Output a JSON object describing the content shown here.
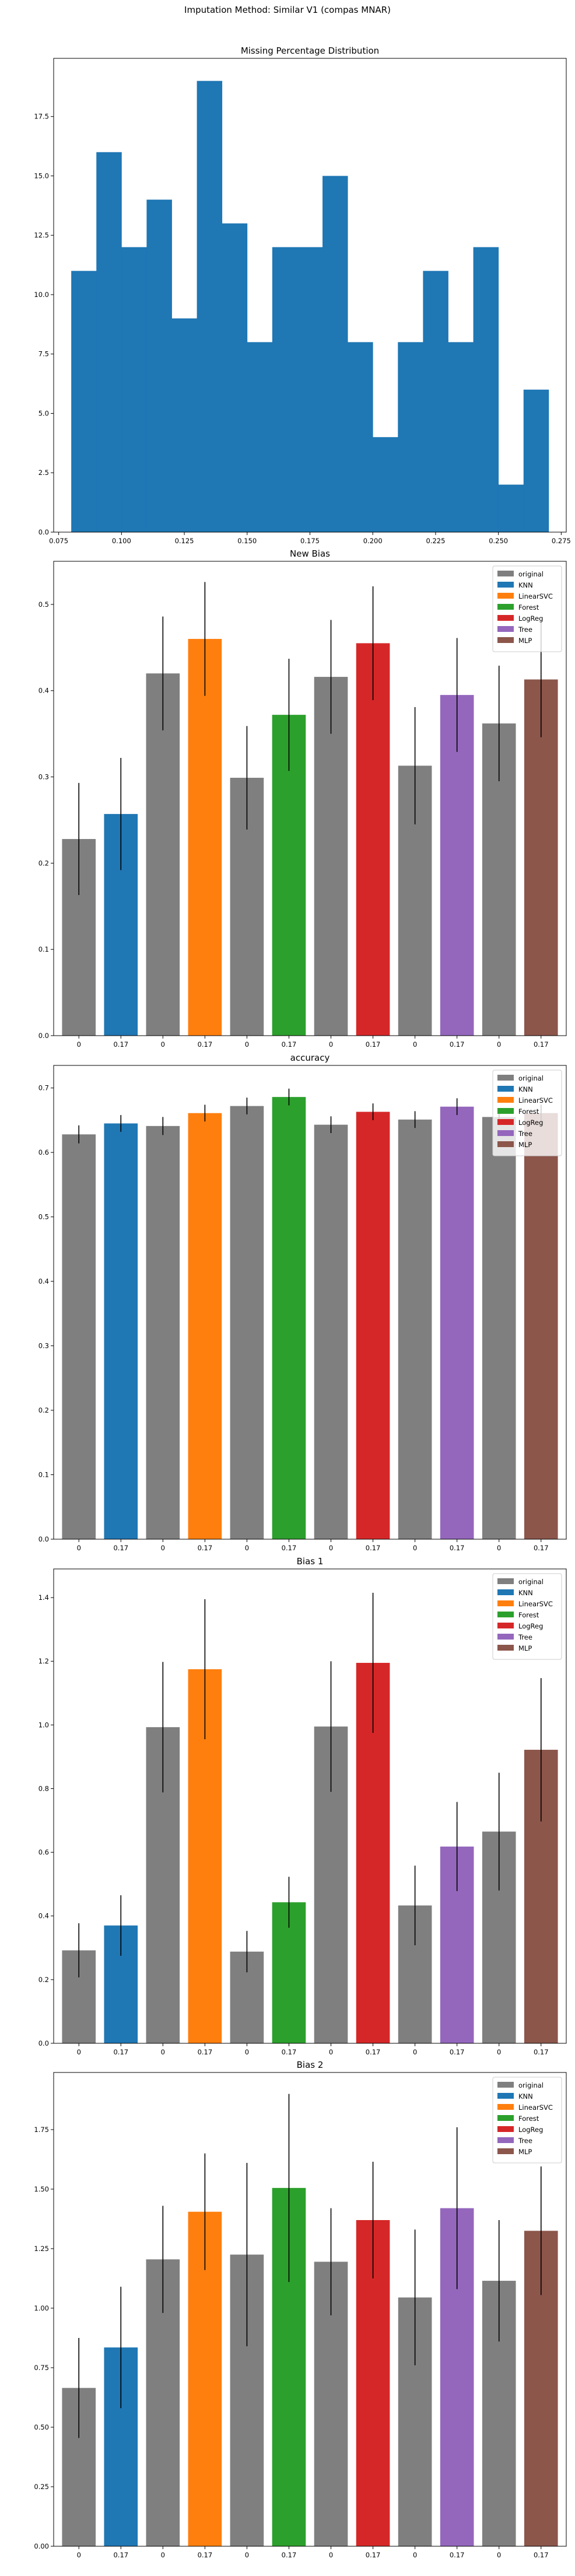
{
  "suptitle": "Imputation Method: Similar V1 (compas MNAR)",
  "colors": {
    "original": "#7f7f7f",
    "KNN": "#1f77b4",
    "LinearSVC": "#ff7f0e",
    "Forest": "#2ca02c",
    "LogReg": "#d62728",
    "Tree": "#9467bd",
    "MLP": "#8c564b",
    "hist": "#1f77b4"
  },
  "legend": [
    "original",
    "KNN",
    "LinearSVC",
    "Forest",
    "LogReg",
    "Tree",
    "MLP"
  ],
  "chart_data": [
    {
      "type": "histogram",
      "title": "Missing Percentage Distribution",
      "bins_start": 0.08,
      "bin_width": 0.01,
      "counts": [
        11,
        16,
        12,
        14,
        9,
        19,
        13,
        8,
        12,
        12,
        15,
        8,
        4,
        8,
        11,
        8,
        12,
        2,
        6
      ],
      "xlim": [
        0.073,
        0.277
      ],
      "ylim": [
        0,
        19.95
      ],
      "xticks": [
        "0.075",
        "0.100",
        "0.125",
        "0.150",
        "0.175",
        "0.200",
        "0.225",
        "0.250",
        "0.275"
      ],
      "yticks": [
        "0.0",
        "2.5",
        "5.0",
        "7.5",
        "10.0",
        "12.5",
        "15.0",
        "17.5"
      ]
    },
    {
      "type": "bar",
      "title": "New Bias",
      "group_labels": [
        "0",
        "0.17"
      ],
      "ylim": [
        0,
        0.55
      ],
      "yticks": [
        "0.0",
        "0.1",
        "0.2",
        "0.3",
        "0.4",
        "0.5"
      ],
      "legend_position": "top-right",
      "series": [
        {
          "name": "KNN",
          "original": 0.228,
          "original_err": 0.065,
          "imputed": 0.257,
          "imputed_err": 0.065
        },
        {
          "name": "LinearSVC",
          "original": 0.42,
          "original_err": 0.066,
          "imputed": 0.46,
          "imputed_err": 0.066
        },
        {
          "name": "Forest",
          "original": 0.299,
          "original_err": 0.06,
          "imputed": 0.372,
          "imputed_err": 0.065
        },
        {
          "name": "LogReg",
          "original": 0.416,
          "original_err": 0.066,
          "imputed": 0.455,
          "imputed_err": 0.066
        },
        {
          "name": "Tree",
          "original": 0.313,
          "original_err": 0.068,
          "imputed": 0.395,
          "imputed_err": 0.066
        },
        {
          "name": "MLP",
          "original": 0.362,
          "original_err": 0.067,
          "imputed": 0.413,
          "imputed_err": 0.067
        }
      ]
    },
    {
      "type": "bar",
      "title": "accuracy",
      "group_labels": [
        "0",
        "0.17"
      ],
      "ylim": [
        0,
        0.735
      ],
      "yticks": [
        "0.0",
        "0.1",
        "0.2",
        "0.3",
        "0.4",
        "0.5",
        "0.6",
        "0.7"
      ],
      "legend_position": "top-right",
      "series": [
        {
          "name": "KNN",
          "original": 0.628,
          "original_err": 0.014,
          "imputed": 0.645,
          "imputed_err": 0.013
        },
        {
          "name": "LinearSVC",
          "original": 0.641,
          "original_err": 0.014,
          "imputed": 0.661,
          "imputed_err": 0.013
        },
        {
          "name": "Forest",
          "original": 0.672,
          "original_err": 0.013,
          "imputed": 0.686,
          "imputed_err": 0.013
        },
        {
          "name": "LogReg",
          "original": 0.643,
          "original_err": 0.013,
          "imputed": 0.663,
          "imputed_err": 0.013
        },
        {
          "name": "Tree",
          "original": 0.651,
          "original_err": 0.013,
          "imputed": 0.671,
          "imputed_err": 0.013
        },
        {
          "name": "MLP",
          "original": 0.655,
          "original_err": 0.013,
          "imputed": 0.661,
          "imputed_err": 0.013
        }
      ]
    },
    {
      "type": "bar",
      "title": "Bias 1",
      "group_labels": [
        "0",
        "0.17"
      ],
      "ylim": [
        0,
        1.49
      ],
      "yticks": [
        "0.0",
        "0.2",
        "0.4",
        "0.6",
        "0.8",
        "1.0",
        "1.2",
        "1.4"
      ],
      "legend_position": "top-right",
      "series": [
        {
          "name": "KNN",
          "original": 0.292,
          "original_err": 0.085,
          "imputed": 0.37,
          "imputed_err": 0.095
        },
        {
          "name": "LinearSVC",
          "original": 0.993,
          "original_err": 0.205,
          "imputed": 1.175,
          "imputed_err": 0.22
        },
        {
          "name": "Forest",
          "original": 0.288,
          "original_err": 0.065,
          "imputed": 0.443,
          "imputed_err": 0.08
        },
        {
          "name": "LogReg",
          "original": 0.995,
          "original_err": 0.205,
          "imputed": 1.195,
          "imputed_err": 0.22
        },
        {
          "name": "Tree",
          "original": 0.433,
          "original_err": 0.125,
          "imputed": 0.618,
          "imputed_err": 0.14
        },
        {
          "name": "MLP",
          "original": 0.665,
          "original_err": 0.185,
          "imputed": 0.922,
          "imputed_err": 0.225
        }
      ]
    },
    {
      "type": "bar",
      "title": "Bias 2",
      "group_labels": [
        "0",
        "0.17"
      ],
      "ylim": [
        0,
        1.99
      ],
      "yticks": [
        "0.00",
        "0.25",
        "0.50",
        "0.75",
        "1.00",
        "1.25",
        "1.50",
        "1.75"
      ],
      "legend_position": "top-right",
      "series": [
        {
          "name": "KNN",
          "original": 0.665,
          "original_err": 0.21,
          "imputed": 0.835,
          "imputed_err": 0.255
        },
        {
          "name": "LinearSVC",
          "original": 1.205,
          "original_err": 0.225,
          "imputed": 1.405,
          "imputed_err": 0.245
        },
        {
          "name": "Forest",
          "original": 1.225,
          "original_err": 0.385,
          "imputed": 1.505,
          "imputed_err": 0.395
        },
        {
          "name": "LogReg",
          "original": 1.195,
          "original_err": 0.225,
          "imputed": 1.37,
          "imputed_err": 0.245
        },
        {
          "name": "Tree",
          "original": 1.045,
          "original_err": 0.285,
          "imputed": 1.42,
          "imputed_err": 0.34
        },
        {
          "name": "MLP",
          "original": 1.115,
          "original_err": 0.255,
          "imputed": 1.325,
          "imputed_err": 0.27
        }
      ]
    }
  ]
}
